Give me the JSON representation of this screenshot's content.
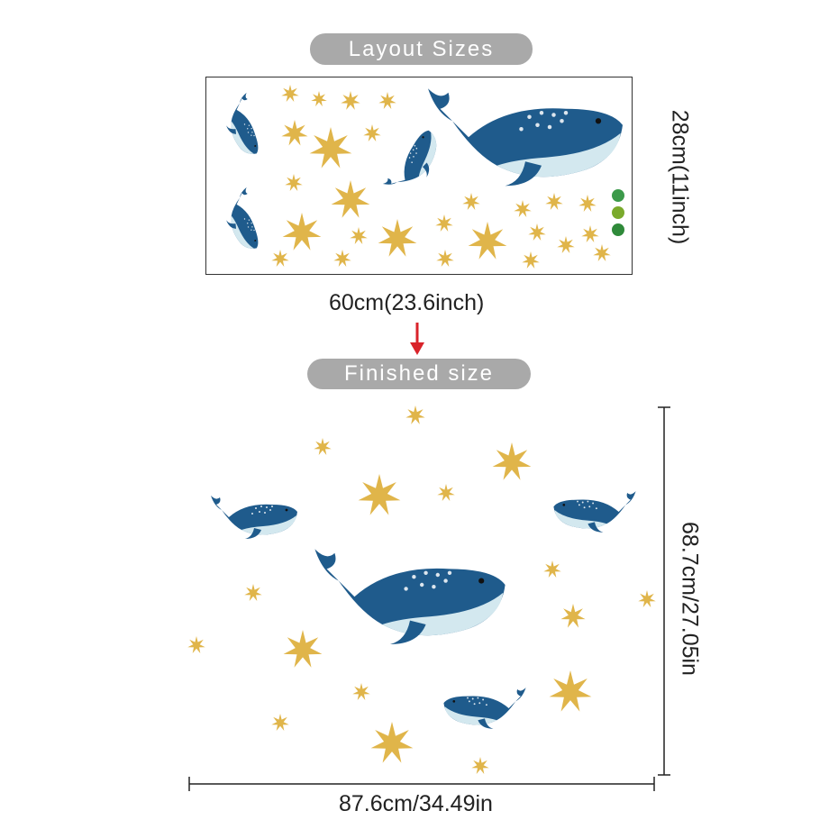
{
  "layout_label": "Layout Sizes",
  "sheet_height": "28cm(11inch)",
  "sheet_width": "60cm(23.6inch)",
  "finished_label": "Finished size",
  "finished_height": "68.7cm/27.05in",
  "finished_width": "87.6cm/34.49in",
  "colors": {
    "pill": "#a9a9a9",
    "whale_dark": "#1f5b8c",
    "whale_belly": "#d3e8ef",
    "star": "#e0b54a",
    "arrow": "#d9232a"
  }
}
